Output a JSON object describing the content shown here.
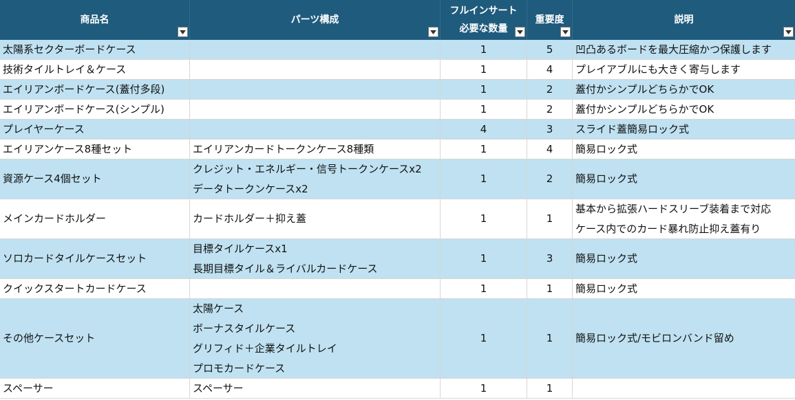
{
  "header": {
    "columns": [
      {
        "label": "商品名"
      },
      {
        "label": "パーツ構成"
      },
      {
        "label_line1": "フルインサート",
        "label_line2": "必要な数量"
      },
      {
        "label": "重要度"
      },
      {
        "label": "説明"
      }
    ],
    "filter_icon": "dropdown-arrow-icon"
  },
  "colors": {
    "header_bg": "#1f5b7d",
    "row_blue": "#bfe1f1",
    "row_white": "#ffffff",
    "grid_line": "#d6d6d6"
  },
  "rows": [
    {
      "band": "blue",
      "name": "太陽系セクターボードケース",
      "parts": [],
      "qty": "1",
      "importance": "5",
      "desc": [
        "凹凸あるボードを最大圧縮かつ保護します"
      ]
    },
    {
      "band": "white",
      "name": "技術タイルトレイ＆ケース",
      "parts": [],
      "qty": "1",
      "importance": "4",
      "desc": [
        "プレイアブルにも大きく寄与します"
      ]
    },
    {
      "band": "blue",
      "name": "エイリアンボードケース(蓋付多段)",
      "parts": [],
      "qty": "1",
      "importance": "2",
      "desc": [
        "蓋付かシンプルどちらかでOK"
      ]
    },
    {
      "band": "white",
      "name": "エイリアンボードケース(シンプル)",
      "parts": [],
      "qty": "1",
      "importance": "2",
      "desc": [
        "蓋付かシンプルどちらかでOK"
      ]
    },
    {
      "band": "blue",
      "name": "プレイヤーケース",
      "parts": [],
      "qty": "4",
      "importance": "3",
      "desc": [
        "スライド蓋簡易ロック式"
      ]
    },
    {
      "band": "white",
      "name": "エイリアンケース8種セット",
      "parts": [
        "エイリアンカードトークンケース8種類"
      ],
      "qty": "1",
      "importance": "4",
      "desc": [
        "簡易ロック式"
      ]
    },
    {
      "band": "blue",
      "name": "資源ケース4個セット",
      "parts": [
        "クレジット・エネルギー・信号トークンケースx2",
        "データトークンケースx2"
      ],
      "qty": "1",
      "importance": "2",
      "desc": [
        "簡易ロック式"
      ]
    },
    {
      "band": "white",
      "name": "メインカードホルダー",
      "parts": [
        "カードホルダー＋抑え蓋"
      ],
      "qty": "1",
      "importance": "1",
      "desc": [
        "基本から拡張ハードスリーブ装着まで対応",
        "ケース内でのカード暴れ防止抑え蓋有り"
      ]
    },
    {
      "band": "blue",
      "name": "ソロカードタイルケースセット",
      "parts": [
        "目標タイルケースx1",
        "長期目標タイル＆ライバルカードケース"
      ],
      "qty": "1",
      "importance": "3",
      "desc": [
        "簡易ロック式"
      ]
    },
    {
      "band": "white",
      "name": "クイックスタートカードケース",
      "parts": [],
      "qty": "1",
      "importance": "1",
      "desc": [
        "簡易ロック式"
      ]
    },
    {
      "band": "blue",
      "name": "その他ケースセット",
      "parts": [
        "太陽ケース",
        "ボーナスタイルケース",
        "グリフィド＋企業タイルトレイ",
        "プロモカードケース"
      ],
      "qty": "1",
      "importance": "1",
      "desc": [
        "簡易ロック式/モビロンバンド留め"
      ]
    },
    {
      "band": "white",
      "name": "スペーサー",
      "parts": [
        "スペーサー"
      ],
      "qty": "1",
      "importance": "1",
      "desc": []
    }
  ]
}
